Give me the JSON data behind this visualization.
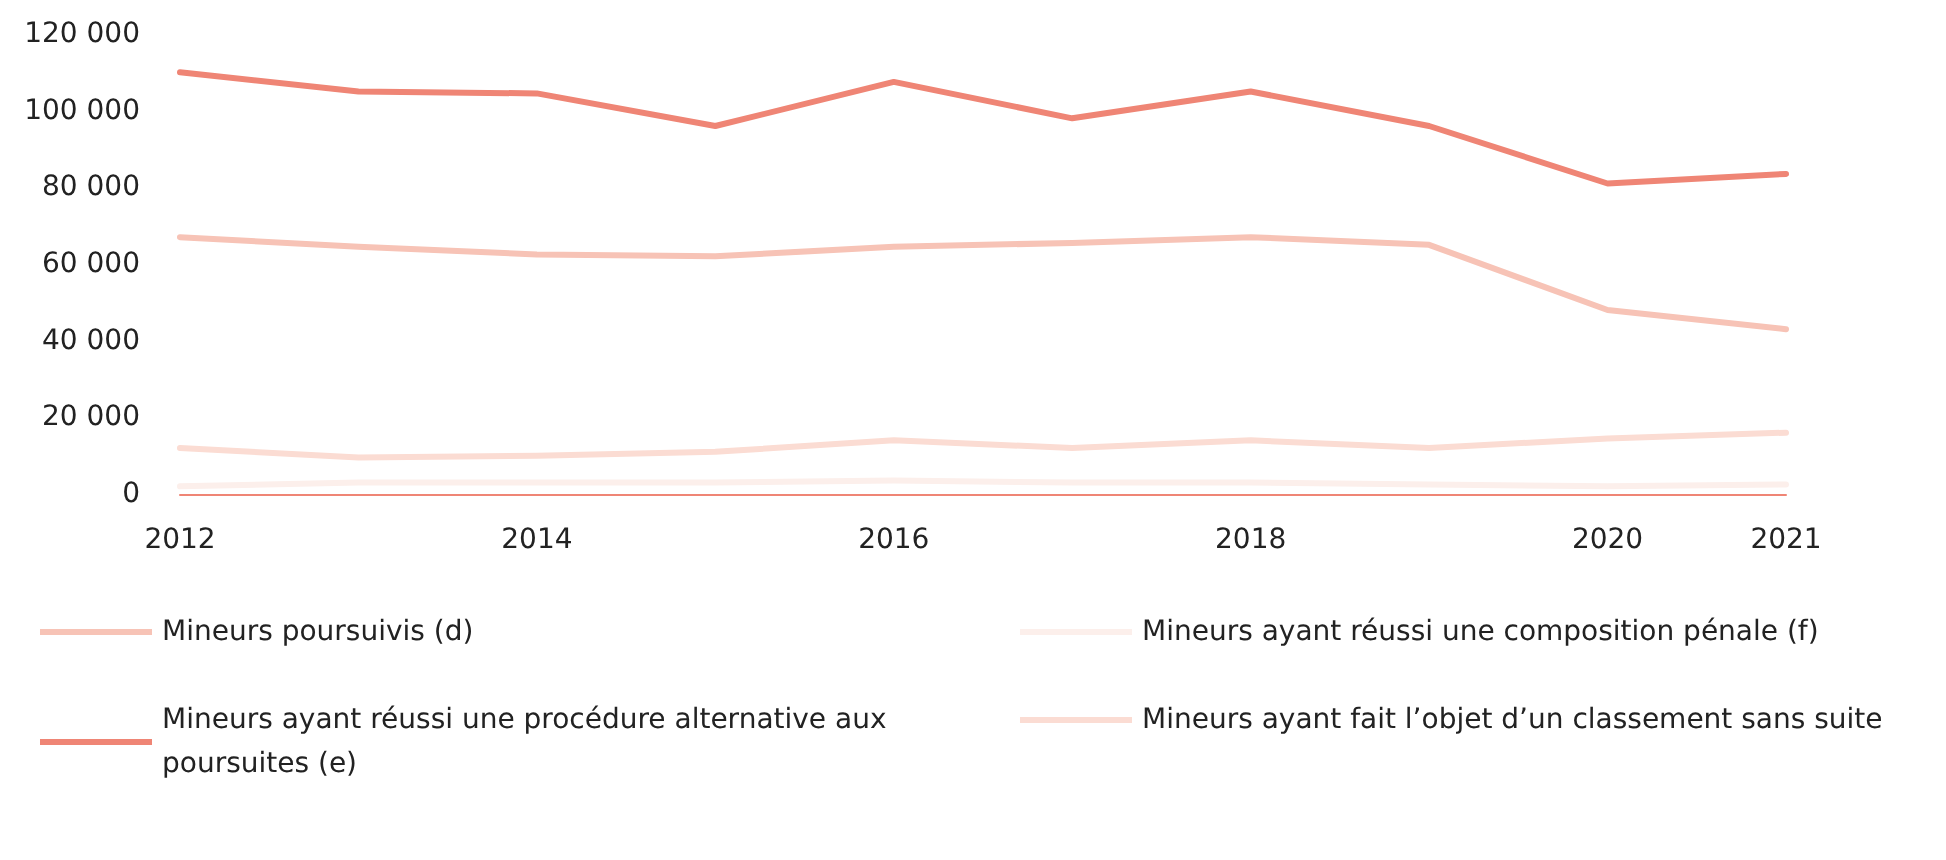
{
  "chart_data": {
    "type": "line",
    "categories": [
      "2012",
      null,
      "2014",
      null,
      "2016",
      null,
      "2018",
      null,
      "2020",
      "2021"
    ],
    "ylim": [
      0,
      120000
    ],
    "yticks": [
      {
        "value": 0,
        "label": "0"
      },
      {
        "value": 20000,
        "label": "20 000"
      },
      {
        "value": 40000,
        "label": "40 000"
      },
      {
        "value": 60000,
        "label": "60 000"
      },
      {
        "value": 80000,
        "label": "80 000"
      },
      {
        "value": 100000,
        "label": "100 000"
      },
      {
        "value": 120000,
        "label": "120 000"
      }
    ],
    "grid": false,
    "legend": "bottom",
    "marker": "none",
    "line_style": "solid",
    "series": [
      {
        "name": "Mineurs poursuivis (d)",
        "color": "#f7c3b6",
        "values": [
          67000,
          64500,
          62500,
          62000,
          64500,
          65500,
          67000,
          65000,
          48000,
          43000
        ]
      },
      {
        "name": "Mineurs ayant réussi une procédure alternative aux poursuites (e)",
        "color": "#ef8575",
        "values": [
          110000,
          105000,
          104500,
          96000,
          107500,
          98000,
          105000,
          96000,
          81000,
          83500
        ]
      },
      {
        "name": "Mineurs ayant réussi une composition pénale (f)",
        "color": "#fcefeb",
        "values": [
          2000,
          3000,
          3000,
          3000,
          3500,
          3000,
          3000,
          2500,
          2000,
          2500
        ]
      },
      {
        "name": "Mineurs ayant fait l’objet d’un classement sans suite",
        "color": "#fbdcd3",
        "values": [
          12000,
          9500,
          10000,
          11000,
          14000,
          12000,
          14000,
          12000,
          14500,
          16000
        ]
      }
    ]
  }
}
